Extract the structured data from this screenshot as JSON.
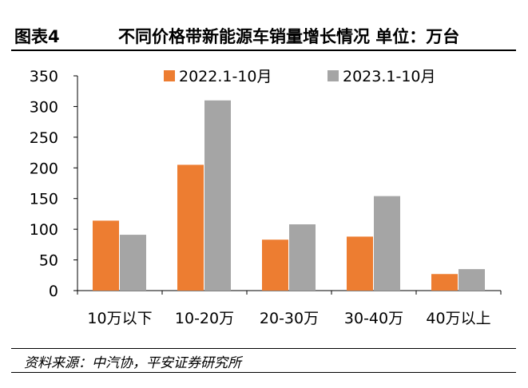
{
  "header": {
    "figure_label": "图表4",
    "title": "不同价格带新能源车销量增长情况 单位：万台"
  },
  "source": "资料来源：中汽协，平安证券研究所",
  "colors": {
    "series_2022": "#ED7D31",
    "series_2023": "#A5A5A5"
  },
  "chart_data": {
    "type": "bar",
    "categories": [
      "10万以下",
      "10-20万",
      "20-30万",
      "30-40万",
      "40万以上"
    ],
    "series": [
      {
        "name": "2022.1-10月",
        "values": [
          114,
          205,
          83,
          88,
          27
        ]
      },
      {
        "name": "2023.1-10月",
        "values": [
          91,
          310,
          108,
          154,
          35
        ]
      }
    ],
    "ylim": [
      0,
      350
    ],
    "yticks": [
      "0",
      "50",
      "100",
      "150",
      "200",
      "250",
      "300",
      "350"
    ],
    "legend_position": "top-center",
    "grid": false
  }
}
